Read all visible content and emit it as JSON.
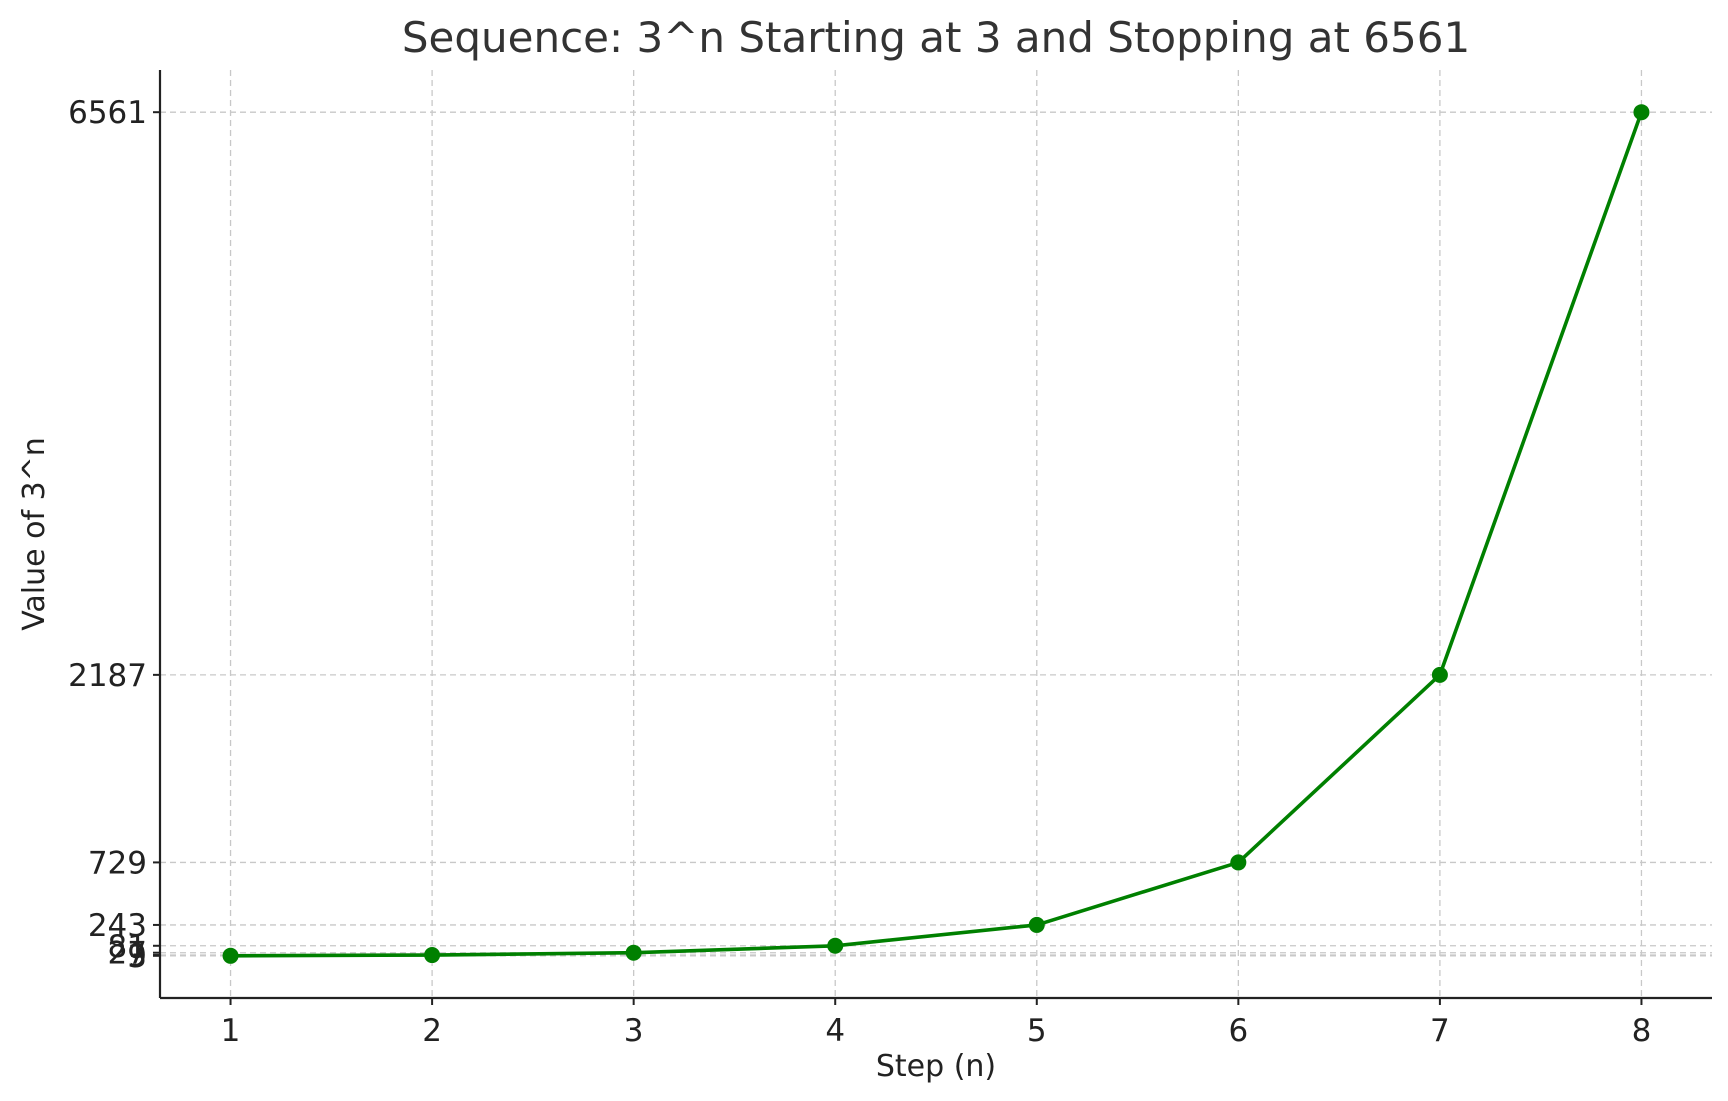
{
  "chart_data": {
    "type": "line",
    "title": "Sequence: 3^n Starting at 3 and Stopping at 6561",
    "xlabel": "Step (n)",
    "ylabel": "Value of 3^n",
    "x": [
      1,
      2,
      3,
      4,
      5,
      6,
      7,
      8
    ],
    "series": [
      {
        "values": [
          3,
          9,
          27,
          81,
          243,
          729,
          2187,
          6561
        ],
        "color": "#008000",
        "marker": "circle"
      }
    ],
    "xticks": [
      1,
      2,
      3,
      4,
      5,
      6,
      7,
      8
    ],
    "yticks": [
      3,
      9,
      27,
      81,
      243,
      729,
      2187,
      6561
    ],
    "xlim": [
      0.65,
      8.35
    ],
    "ylim": [
      -325,
      6889
    ],
    "grid": true
  }
}
